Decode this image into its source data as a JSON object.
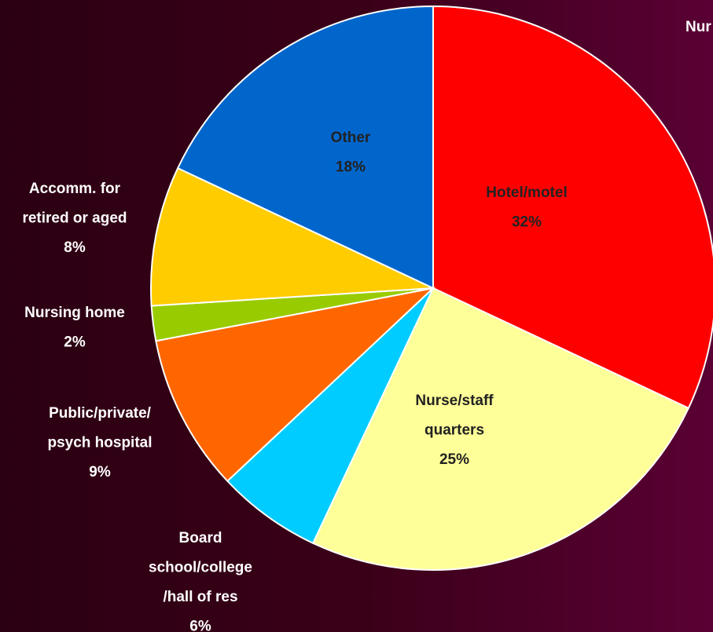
{
  "chart_data": {
    "type": "pie",
    "categories": [
      [
        "Hotel/motel"
      ],
      [
        "Nurse/staff",
        "quarters"
      ],
      [
        "Board",
        "school/college",
        "/hall of res"
      ],
      [
        "Public/private/",
        "psych hospital"
      ],
      [
        "Nursing home"
      ],
      [
        "Accomm. for",
        "retired or aged"
      ],
      [
        "Other"
      ]
    ],
    "values": [
      32,
      25,
      6,
      9,
      2,
      8,
      18
    ],
    "value_labels": [
      "32%",
      "25%",
      "6%",
      "9%",
      "2%",
      "8%",
      "18%"
    ],
    "colors": [
      "#ff0000",
      "#ffff99",
      "#00ccff",
      "#ff6600",
      "#99cc00",
      "#ffcc00",
      "#0066cc"
    ],
    "annotation": "Nur"
  }
}
